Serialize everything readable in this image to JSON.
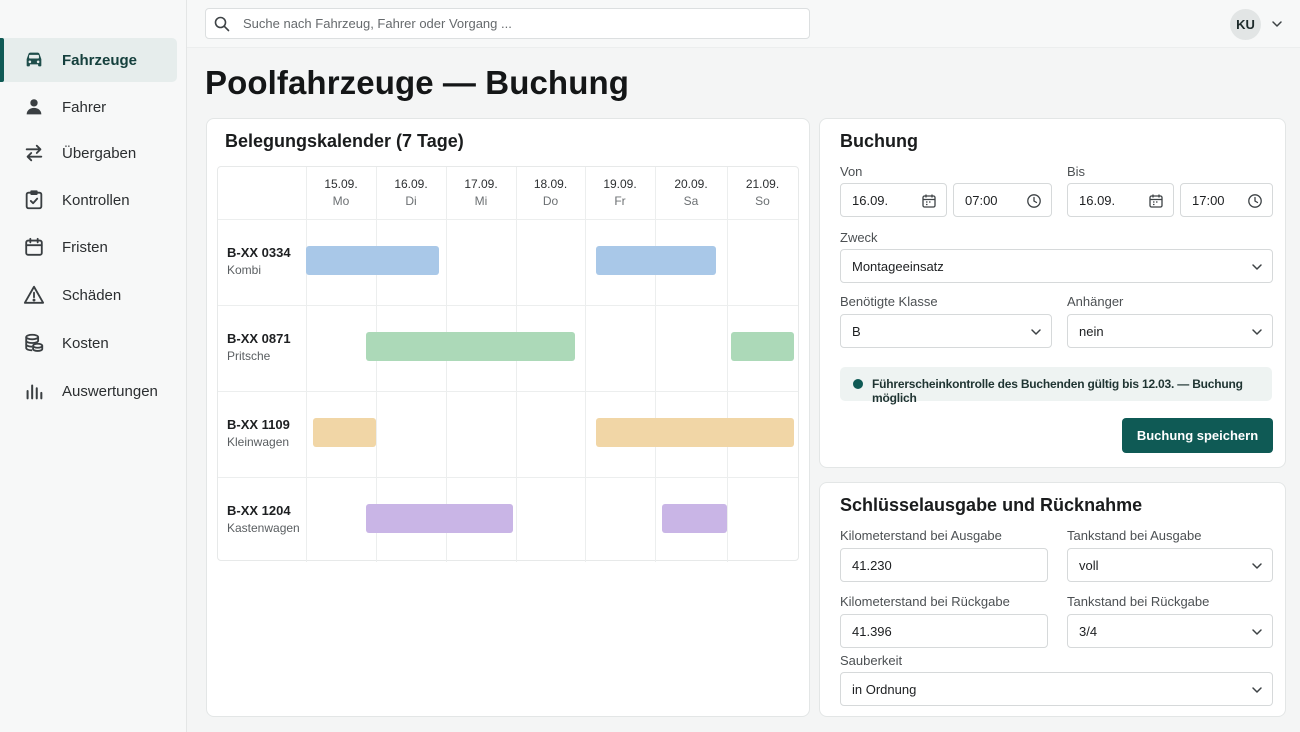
{
  "search": {
    "placeholder": "Suche nach Fahrzeug, Fahrer oder Vorgang ..."
  },
  "user": {
    "initials": "KU"
  },
  "sidebar": {
    "items": [
      {
        "label": "Fahrzeuge",
        "icon": "car-icon",
        "active": true
      },
      {
        "label": "Fahrer",
        "icon": "person-icon"
      },
      {
        "label": "Übergaben",
        "icon": "swap-arrows-icon"
      },
      {
        "label": "Kontrollen",
        "icon": "clipboard-check-icon"
      },
      {
        "label": "Fristen",
        "icon": "calendar-icon"
      },
      {
        "label": "Schäden",
        "icon": "warning-icon"
      },
      {
        "label": "Kosten",
        "icon": "coins-icon"
      },
      {
        "label": "Auswertungen",
        "icon": "bar-chart-icon"
      }
    ]
  },
  "page": {
    "title": "Poolfahrzeuge — Buchung"
  },
  "calendar": {
    "title": "Belegungskalender (7 Tage)",
    "days": [
      {
        "date": "15.09.",
        "weekday": "Mo"
      },
      {
        "date": "16.09.",
        "weekday": "Di"
      },
      {
        "date": "17.09.",
        "weekday": "Mi"
      },
      {
        "date": "18.09.",
        "weekday": "Do"
      },
      {
        "date": "19.09.",
        "weekday": "Fr"
      },
      {
        "date": "20.09.",
        "weekday": "Sa"
      },
      {
        "date": "21.09.",
        "weekday": "So"
      }
    ],
    "vehicles": [
      {
        "plate": "B-XX 0334",
        "type": "Kombi",
        "color": "#a9c8e8",
        "bookings": [
          {
            "start": 0,
            "end": 1.9
          },
          {
            "start": 4.15,
            "end": 5.85
          }
        ]
      },
      {
        "plate": "B-XX 0871",
        "type": "Pritsche",
        "color": "#acd9b8",
        "bookings": [
          {
            "start": 0.85,
            "end": 3.85
          },
          {
            "start": 6.05,
            "end": 6.95
          }
        ]
      },
      {
        "plate": "B-XX 1109",
        "type": "Kleinwagen",
        "color": "#f1d6a6",
        "bookings": [
          {
            "start": 0.1,
            "end": 1.0
          },
          {
            "start": 4.15,
            "end": 6.95
          }
        ]
      },
      {
        "plate": "B-XX 1204",
        "type": "Kastenwagen",
        "color": "#c9b5e6",
        "bookings": [
          {
            "start": 0.85,
            "end": 2.95
          },
          {
            "start": 5.1,
            "end": 6.0
          }
        ]
      }
    ]
  },
  "booking": {
    "title": "Buchung",
    "from_label": "Von",
    "from_date": "16.09.",
    "from_time": "07:00",
    "to_label": "Bis",
    "to_date": "16.09.",
    "to_time": "17:00",
    "purpose_label": "Zweck",
    "purpose_value": "Montageeinsatz",
    "class_label": "Benötigte Klasse",
    "class_value": "B",
    "trailer_label": "Anhänger",
    "trailer_value": "nein",
    "notice": "Führerscheinkontrolle des Buchenden gültig bis 12.03. — Buchung möglich",
    "notice_color": "#0f5a55",
    "save_label": "Buchung speichern"
  },
  "keys": {
    "title": "Schlüsselausgabe und Rücknahme",
    "km_out_label": "Kilometerstand bei Ausgabe",
    "km_out_value": "41.230",
    "fuel_out_label": "Tankstand bei Ausgabe",
    "fuel_out_value": "voll",
    "km_in_label": "Kilometerstand bei Rückgabe",
    "km_in_value": "41.396",
    "fuel_in_label": "Tankstand bei Rückgabe",
    "fuel_in_value": "3/4",
    "clean_label": "Sauberkeit",
    "clean_value": "in Ordnung"
  }
}
